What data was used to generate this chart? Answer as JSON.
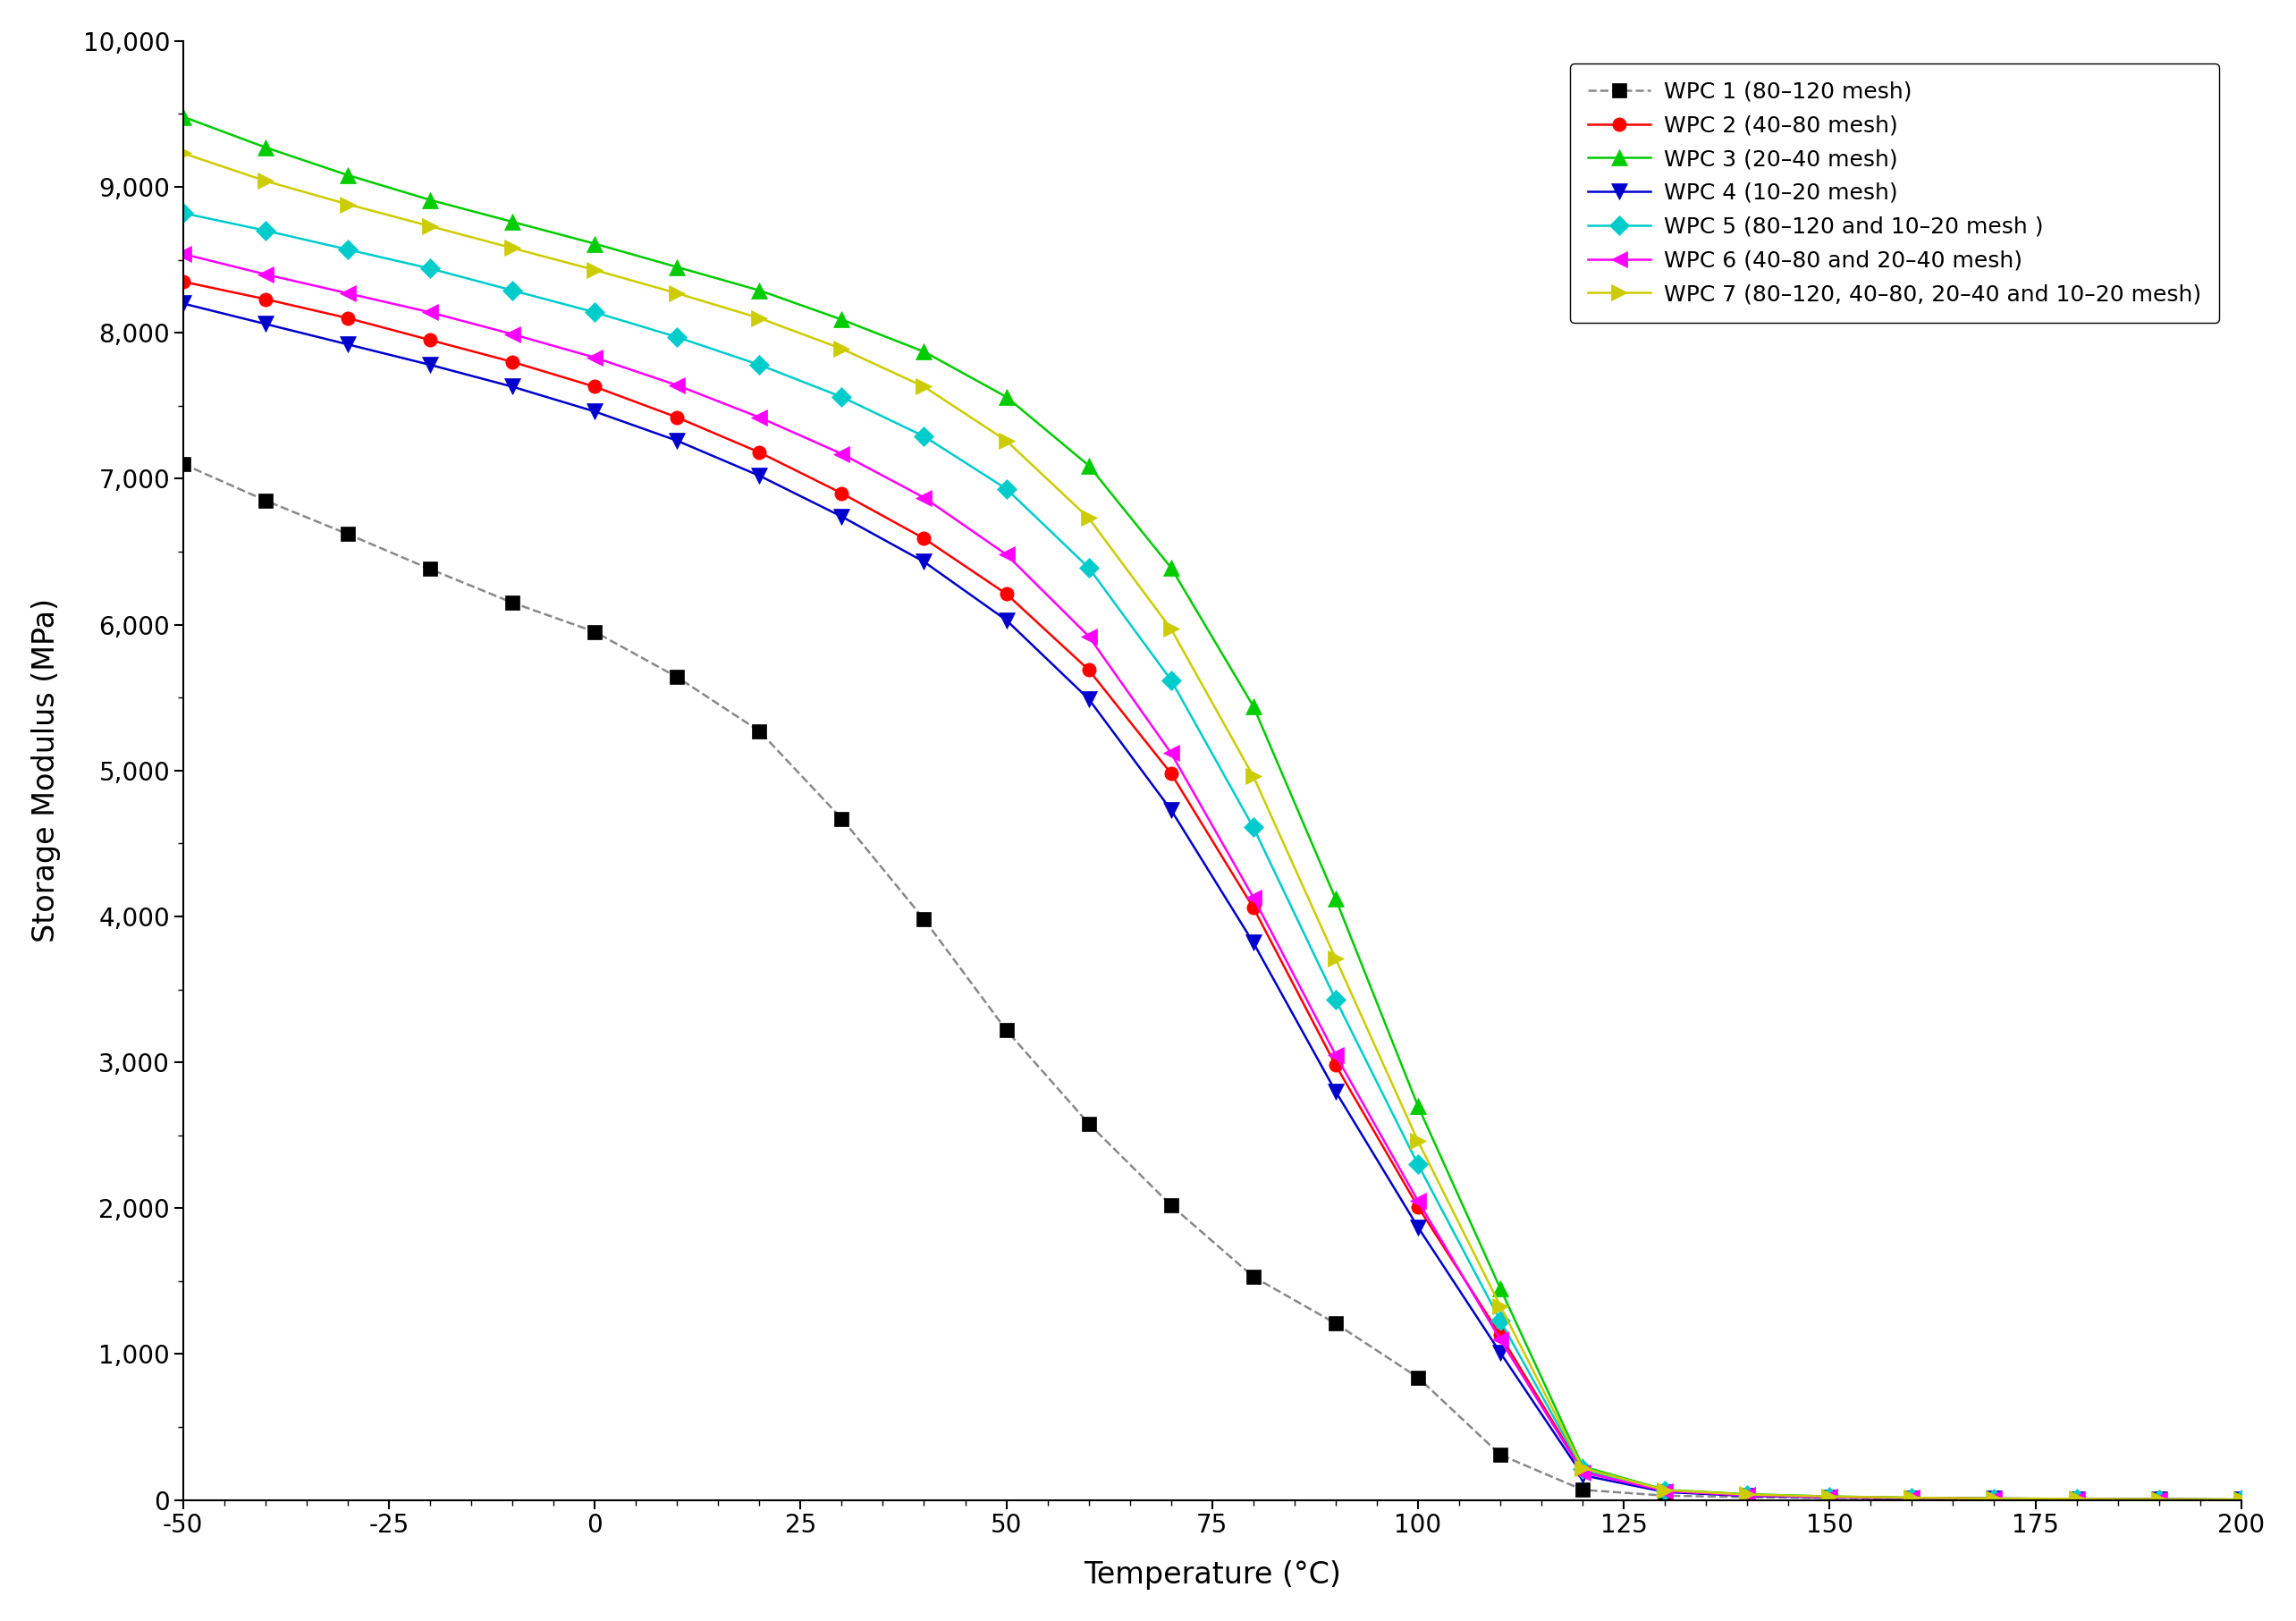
{
  "title": "",
  "xlabel": "Temperature (°C)",
  "ylabel": "Storage Modulus (MPa)",
  "xlim": [
    -50,
    200
  ],
  "ylim": [
    0,
    10000
  ],
  "yticks": [
    0,
    1000,
    2000,
    3000,
    4000,
    5000,
    6000,
    7000,
    8000,
    9000,
    10000
  ],
  "xticks": [
    -50,
    -25,
    0,
    25,
    50,
    75,
    100,
    125,
    150,
    175,
    200
  ],
  "series": [
    {
      "label": "WPC 1 (80–120 mesh)",
      "color": "#888888",
      "marker": "s",
      "marker_color": "#000000",
      "linestyle": "--",
      "x": [
        -50,
        -40,
        -30,
        -20,
        -10,
        0,
        10,
        20,
        30,
        40,
        50,
        60,
        70,
        80,
        90,
        100,
        110,
        120,
        130,
        140,
        150,
        160,
        170,
        180,
        190,
        200
      ],
      "y": [
        7100,
        6850,
        6620,
        6380,
        6150,
        5950,
        5640,
        5270,
        4670,
        3980,
        3220,
        2580,
        2020,
        1530,
        1210,
        840,
        310,
        70,
        30,
        20,
        15,
        10,
        8,
        5,
        3,
        2
      ]
    },
    {
      "label": "WPC 2 (40–80 mesh)",
      "color": "#ff0000",
      "marker": "o",
      "marker_color": "#ff0000",
      "linestyle": "-",
      "x": [
        -50,
        -40,
        -30,
        -20,
        -10,
        0,
        10,
        20,
        30,
        40,
        50,
        60,
        70,
        80,
        90,
        100,
        110,
        120,
        130,
        140,
        150,
        160,
        170,
        180,
        190,
        200
      ],
      "y": [
        8350,
        8230,
        8100,
        7950,
        7800,
        7630,
        7420,
        7180,
        6900,
        6590,
        6210,
        5690,
        4980,
        4060,
        2980,
        2010,
        1130,
        200,
        60,
        30,
        20,
        15,
        10,
        8,
        5,
        3
      ]
    },
    {
      "label": "WPC 3 (20–40 mesh)",
      "color": "#00cc00",
      "marker": "^",
      "marker_color": "#00cc00",
      "linestyle": "-",
      "x": [
        -50,
        -40,
        -30,
        -20,
        -10,
        0,
        10,
        20,
        30,
        40,
        50,
        60,
        70,
        80,
        90,
        100,
        110,
        120,
        130,
        140,
        150,
        160,
        170,
        180,
        190,
        200
      ],
      "y": [
        9480,
        9270,
        9080,
        8910,
        8760,
        8610,
        8450,
        8290,
        8090,
        7870,
        7560,
        7090,
        6390,
        5440,
        4120,
        2700,
        1450,
        230,
        70,
        40,
        25,
        15,
        10,
        8,
        5,
        3
      ]
    },
    {
      "label": "WPC 4 (10–20 mesh)",
      "color": "#0000cc",
      "marker": "v",
      "marker_color": "#0000cc",
      "linestyle": "-",
      "x": [
        -50,
        -40,
        -30,
        -20,
        -10,
        0,
        10,
        20,
        30,
        40,
        50,
        60,
        70,
        80,
        90,
        100,
        110,
        120,
        130,
        140,
        150,
        160,
        170,
        180,
        190,
        200
      ],
      "y": [
        8200,
        8060,
        7920,
        7780,
        7630,
        7460,
        7260,
        7020,
        6740,
        6430,
        6030,
        5490,
        4730,
        3820,
        2800,
        1870,
        1010,
        170,
        55,
        28,
        18,
        13,
        9,
        7,
        4,
        2
      ]
    },
    {
      "label": "WPC 5 (80–120 and 10–20 mesh )",
      "color": "#00cccc",
      "marker": "D",
      "marker_color": "#00cccc",
      "linestyle": "-",
      "x": [
        -50,
        -40,
        -30,
        -20,
        -10,
        0,
        10,
        20,
        30,
        40,
        50,
        60,
        70,
        80,
        90,
        100,
        110,
        120,
        130,
        140,
        150,
        160,
        170,
        180,
        190,
        200
      ],
      "y": [
        8820,
        8700,
        8570,
        8440,
        8290,
        8140,
        7970,
        7780,
        7560,
        7290,
        6930,
        6390,
        5620,
        4610,
        3430,
        2300,
        1230,
        210,
        65,
        35,
        22,
        15,
        10,
        8,
        5,
        3
      ]
    },
    {
      "label": "WPC 6 (40–80 and 20–40 mesh)",
      "color": "#ff00ff",
      "marker": "<",
      "marker_color": "#ff00ff",
      "linestyle": "-",
      "x": [
        -50,
        -40,
        -30,
        -20,
        -10,
        0,
        10,
        20,
        30,
        40,
        50,
        60,
        70,
        80,
        90,
        100,
        110,
        120,
        130,
        140,
        150,
        160,
        170,
        180,
        190,
        200
      ],
      "y": [
        8540,
        8400,
        8270,
        8140,
        7990,
        7830,
        7640,
        7420,
        7170,
        6870,
        6480,
        5920,
        5120,
        4130,
        3050,
        2050,
        1100,
        190,
        62,
        32,
        20,
        14,
        10,
        7,
        4,
        2
      ]
    },
    {
      "label": "WPC 7 (80–120, 40–80, 20–40 and 10–20 mesh)",
      "color": "#cccc00",
      "marker": ">",
      "marker_color": "#cccc00",
      "linestyle": "-",
      "x": [
        -50,
        -40,
        -30,
        -20,
        -10,
        0,
        10,
        20,
        30,
        40,
        50,
        60,
        70,
        80,
        90,
        100,
        110,
        120,
        130,
        140,
        150,
        160,
        170,
        180,
        190,
        200
      ],
      "y": [
        9230,
        9040,
        8880,
        8730,
        8580,
        8430,
        8270,
        8100,
        7890,
        7630,
        7260,
        6730,
        5970,
        4960,
        3710,
        2460,
        1330,
        220,
        68,
        38,
        24,
        16,
        11,
        8,
        5,
        3
      ]
    }
  ]
}
